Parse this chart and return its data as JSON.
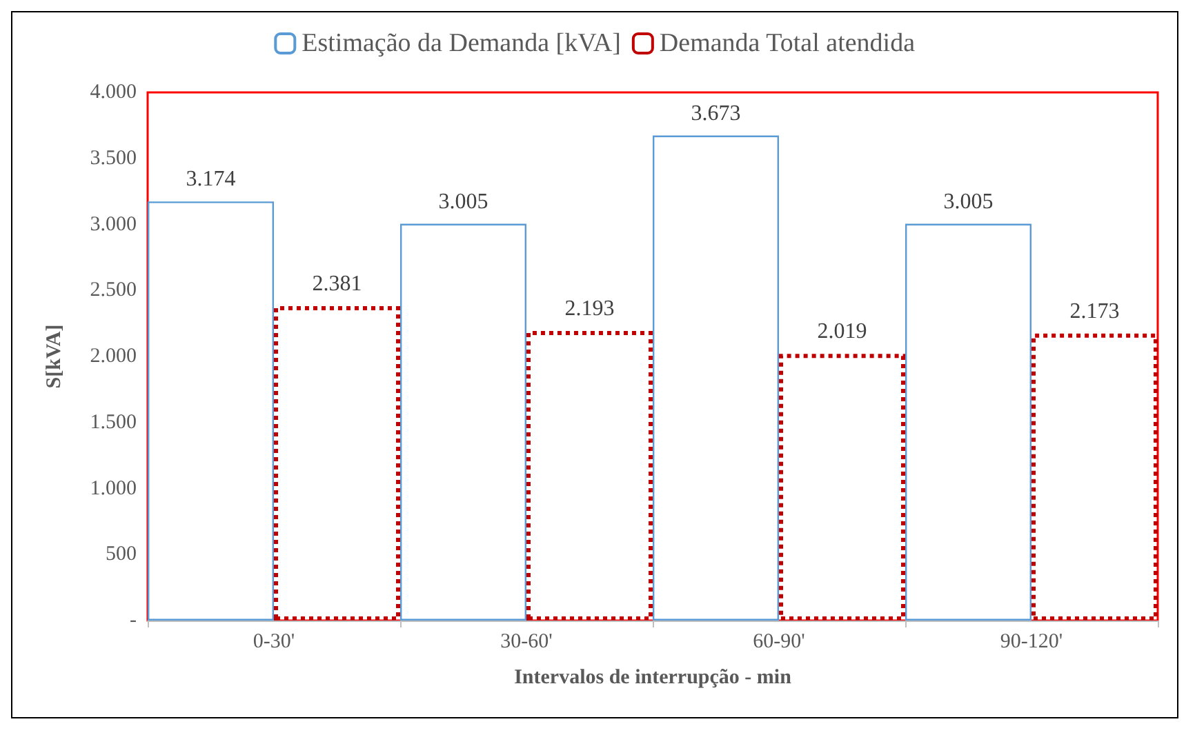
{
  "chart_data": {
    "type": "bar",
    "xlabel": "Intervalos de interrupção - min",
    "ylabel": "S[kVA]",
    "categories": [
      "0-30'",
      "30-60'",
      "60-90'",
      "90-120'"
    ],
    "series": [
      {
        "name": "Estimação da Demanda [kVA]",
        "color": "#5b9bd5",
        "line_style": "solid",
        "values": [
          3174,
          3005,
          3673,
          3005
        ],
        "value_labels": [
          "3.174",
          "3.005",
          "3.673",
          "3.005"
        ]
      },
      {
        "name": "Demanda Total atendida",
        "color": "#c00000",
        "line_style": "dotted",
        "values": [
          2381,
          2193,
          2019,
          2173
        ],
        "value_labels": [
          "2.381",
          "2.193",
          "2.019",
          "2.173"
        ]
      }
    ],
    "ylim": [
      0,
      4000
    ],
    "yticks": [
      {
        "value": 0,
        "label": "-"
      },
      {
        "value": 500,
        "label": "500"
      },
      {
        "value": 1000,
        "label": "1.000"
      },
      {
        "value": 1500,
        "label": "1.500"
      },
      {
        "value": 2000,
        "label": "2.000"
      },
      {
        "value": 2500,
        "label": "2.500"
      },
      {
        "value": 3000,
        "label": "3.000"
      },
      {
        "value": 3500,
        "label": "3.500"
      },
      {
        "value": 4000,
        "label": "4.000"
      }
    ],
    "grid": false,
    "legend": "top"
  }
}
